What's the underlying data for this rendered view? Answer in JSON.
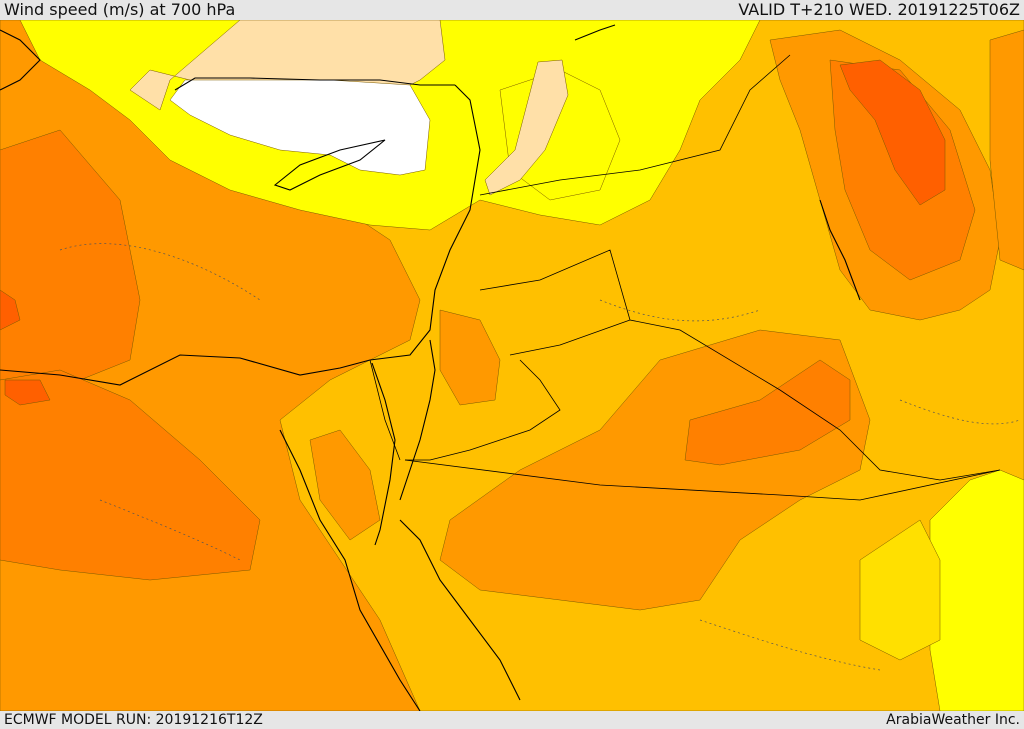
{
  "header": {
    "title": "Wind speed (m/s) at 700 hPa",
    "valid": "VALID T+210 WED. 20191225T06Z"
  },
  "footer": {
    "model_run": "ECMWF MODEL RUN: 20191216T12Z",
    "credit": "ArabiaWeather Inc."
  },
  "colors": {
    "lt5": "#ffffff",
    "c5": "#ffe0a8",
    "c10": "#ffff00",
    "c15": "#ffe000",
    "c20": "#ffc000",
    "c25": "#ff9900",
    "c30": "#ff8000",
    "c35": "#ff6000"
  }
}
